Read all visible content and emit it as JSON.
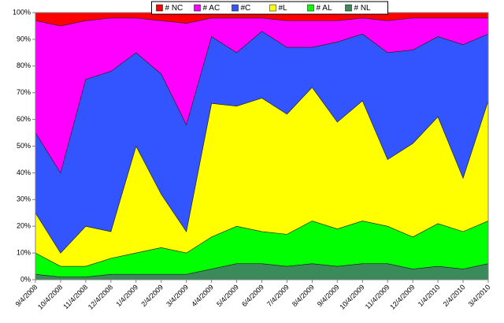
{
  "chart_data": {
    "type": "area",
    "stacked": true,
    "normalized": true,
    "x": [
      "9/4/2008",
      "10/4/2008",
      "11/4/2008",
      "12/4/2008",
      "1/4/2009",
      "2/4/2009",
      "3/4/2009",
      "4/4/2009",
      "5/4/2009",
      "6/4/2009",
      "7/4/2009",
      "8/4/2009",
      "9/4/2009",
      "10/4/2009",
      "11/4/2009",
      "12/4/2009",
      "1/4/2010",
      "2/4/2010",
      "3/4/2010"
    ],
    "ylim": [
      0,
      100
    ],
    "yticks": [
      "0%",
      "10%",
      "20%",
      "30%",
      "40%",
      "50%",
      "60%",
      "70%",
      "80%",
      "90%",
      "100%"
    ],
    "legend_position": "top",
    "series": [
      {
        "name": "# NL",
        "color": "#3a8a5a",
        "values": [
          2,
          1,
          1,
          2,
          2,
          2,
          2,
          4,
          6,
          6,
          5,
          6,
          5,
          6,
          6,
          4,
          5,
          4,
          6
        ]
      },
      {
        "name": "# AL",
        "color": "#00ff00",
        "values": [
          8,
          4,
          4,
          6,
          8,
          10,
          8,
          12,
          14,
          12,
          12,
          16,
          14,
          16,
          14,
          12,
          16,
          14,
          16
        ]
      },
      {
        "name": "#L",
        "color": "#ffff00",
        "values": [
          15,
          5,
          15,
          10,
          40,
          20,
          8,
          50,
          45,
          50,
          45,
          50,
          40,
          45,
          25,
          35,
          40,
          20,
          45
        ]
      },
      {
        "name": "#C",
        "color": "#3355ff",
        "values": [
          30,
          30,
          55,
          60,
          35,
          45,
          40,
          25,
          20,
          25,
          25,
          15,
          30,
          25,
          40,
          35,
          30,
          50,
          25
        ]
      },
      {
        "name": "# AC",
        "color": "#ff00ff",
        "values": [
          42,
          55,
          22,
          20,
          13,
          20,
          38,
          7,
          13,
          5,
          10,
          10,
          8,
          6,
          12,
          12,
          7,
          10,
          6
        ]
      },
      {
        "name": "# NC",
        "color": "#ff0000",
        "values": [
          3,
          5,
          3,
          2,
          2,
          3,
          4,
          2,
          2,
          2,
          3,
          3,
          3,
          2,
          3,
          2,
          2,
          2,
          2
        ]
      }
    ]
  }
}
